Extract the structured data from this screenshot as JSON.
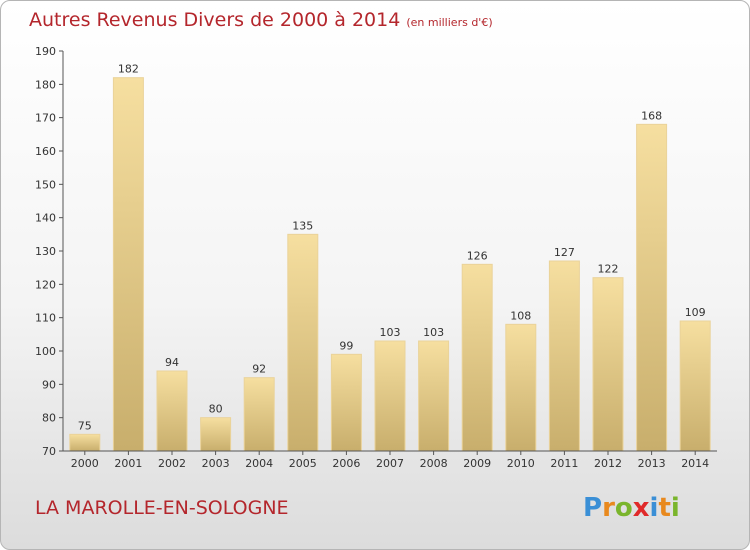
{
  "title": "Autres Revenus Divers de 2000 à 2014",
  "unit": "(en milliers d'€)",
  "commune": "LA MAROLLE-EN-SOLOGNE",
  "logo_text": "Proxiti",
  "colors": {
    "title": "#b4262c",
    "bar_light": "#f6dfa0",
    "bar_dark": "#c8ae6c",
    "axis": "#555555",
    "text": "#333333"
  },
  "chart_data": {
    "type": "bar",
    "title": "Autres Revenus Divers de 2000 à 2014",
    "xlabel": "",
    "ylabel": "",
    "categories": [
      "2000",
      "2001",
      "2002",
      "2003",
      "2004",
      "2005",
      "2006",
      "2007",
      "2008",
      "2009",
      "2010",
      "2011",
      "2012",
      "2013",
      "2014"
    ],
    "values": [
      75,
      182,
      94,
      80,
      92,
      135,
      99,
      103,
      103,
      126,
      108,
      127,
      122,
      168,
      109
    ],
    "ylim": [
      70,
      190
    ],
    "yticks": [
      70,
      80,
      90,
      100,
      110,
      120,
      130,
      140,
      150,
      160,
      170,
      180,
      190
    ],
    "grid": false,
    "legend": "none"
  }
}
